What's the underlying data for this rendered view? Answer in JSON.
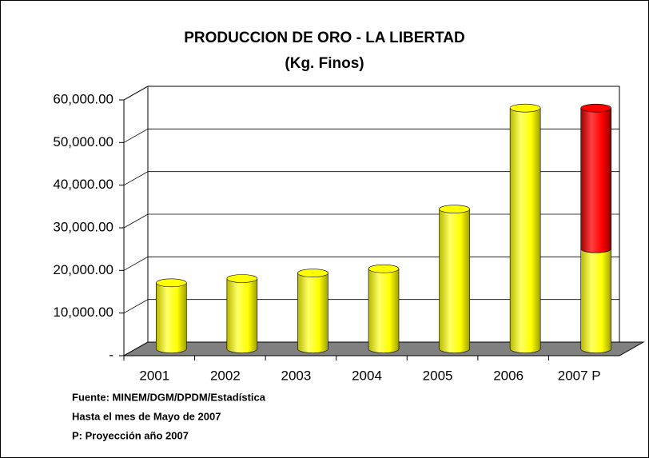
{
  "chart_data": {
    "type": "bar3d",
    "title": "PRODUCCION DE ORO - LA LIBERTAD",
    "subtitle": "(Kg. Finos)",
    "categories": [
      "2001",
      "2002",
      "2003",
      "2004",
      "2005",
      "2006",
      "2007 P"
    ],
    "series": [
      {
        "color": "#ffff00",
        "values": [
          15500,
          16500,
          17800,
          18800,
          32800,
          56500,
          23500
        ]
      },
      {
        "color": "#ff0000",
        "values": [
          null,
          null,
          null,
          null,
          null,
          null,
          33000
        ]
      }
    ],
    "stacked": true,
    "ylim": [
      0,
      60000
    ],
    "yticks": [
      {
        "value": 0,
        "label": "-"
      },
      {
        "value": 10000,
        "label": "10,000.00"
      },
      {
        "value": 20000,
        "label": "20,000.00"
      },
      {
        "value": 30000,
        "label": "30,000.00"
      },
      {
        "value": 40000,
        "label": "40,000.00"
      },
      {
        "value": 50000,
        "label": "50,000.00"
      },
      {
        "value": 60000,
        "label": "60,000.00"
      }
    ],
    "grid": true,
    "notes": [
      "Fuente: MINEM/DGM/DPDM/Estadística",
      "Hasta el mes de Mayo de 2007",
      "P:  Proyección año 2007"
    ]
  }
}
